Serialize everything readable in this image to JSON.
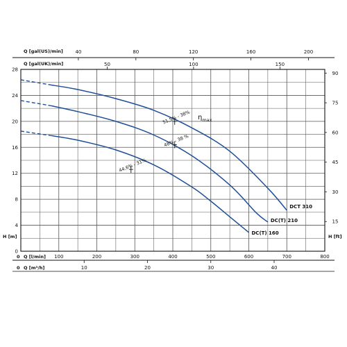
{
  "chart_data": {
    "type": "line",
    "grid": true,
    "axes": {
      "bottom_lpm": {
        "label": "Q [l/min]",
        "ticks": [
          "0",
          "100",
          "200",
          "300",
          "400",
          "500",
          "600",
          "700",
          "800"
        ],
        "range": [
          0,
          800
        ]
      },
      "bottom_m3h": {
        "label": "Q [m³/h]",
        "ticks": [
          "0",
          "10",
          "20",
          "30",
          "40"
        ],
        "values": [
          0,
          10,
          20,
          30,
          40
        ]
      },
      "top_gal_us": {
        "label": "Q [gal(US)/min]",
        "ticks": [
          "40",
          "80",
          "120",
          "160",
          "200"
        ],
        "values": [
          40,
          80,
          120,
          160,
          200
        ]
      },
      "top_gal_uk": {
        "label": "Q [gal(UK)/min]",
        "ticks": [
          "50",
          "100",
          "150"
        ],
        "values": [
          50,
          100,
          150
        ]
      },
      "left_m": {
        "label": "H [m]",
        "ticks": [
          "0",
          "4",
          "8",
          "12",
          "16",
          "20",
          "24",
          "28"
        ],
        "range": [
          0,
          28
        ]
      },
      "right_ft": {
        "label": "H [ft]",
        "ticks": [
          "15",
          "30",
          "45",
          "60",
          "75",
          "90"
        ],
        "values": [
          15,
          30,
          45,
          60,
          75,
          90
        ]
      }
    },
    "series": [
      {
        "name": "DCT 310",
        "color": "#1f4e96",
        "dashed_to": 80,
        "x": [
          0,
          80,
          150,
          250,
          350,
          450,
          550,
          650,
          700
        ],
        "y": [
          26.4,
          25.6,
          24.9,
          23.5,
          21.7,
          19.0,
          15.4,
          9.7,
          6.3
        ]
      },
      {
        "name": "DC(T) 210",
        "color": "#1f4e96",
        "dashed_to": 80,
        "x": [
          0,
          80,
          150,
          250,
          350,
          450,
          550,
          620,
          650
        ],
        "y": [
          23.2,
          22.4,
          21.5,
          20.0,
          17.9,
          14.7,
          10.2,
          5.9,
          4.5
        ]
      },
      {
        "name": "DC(T) 160",
        "color": "#1f4e96",
        "dashed_to": 80,
        "x": [
          0,
          80,
          150,
          250,
          350,
          450,
          500,
          550,
          600
        ],
        "y": [
          18.5,
          17.8,
          17.1,
          15.6,
          13.3,
          9.9,
          7.7,
          5.3,
          2.9
        ]
      }
    ],
    "annotations": {
      "eta_label": "η",
      "eta_sub": "max",
      "efficiency": [
        {
          "text": "51,5% - 38%",
          "x": 405,
          "y": 20.0
        },
        {
          "text": "48% - 38 %",
          "x": 405,
          "y": 16.4
        },
        {
          "text": "44,6% - 31%",
          "x": 290,
          "y": 12.6
        }
      ]
    }
  }
}
